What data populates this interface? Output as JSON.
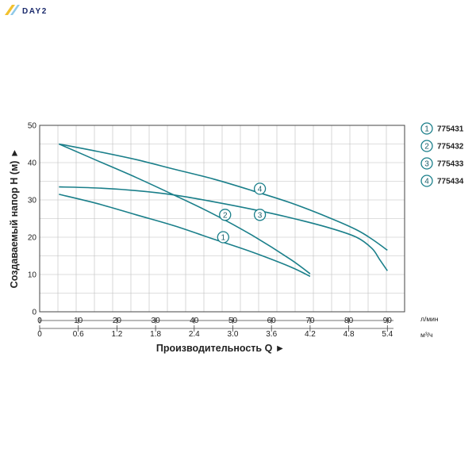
{
  "brand": {
    "logo_text": "DAY2",
    "accent": "#f2c12e",
    "logo_color": "#1a2a6c"
  },
  "colors": {
    "curve": "#1a7f8a",
    "grid": "#bdbdbd",
    "axis": "#444444"
  },
  "chart_data": {
    "type": "line",
    "title": "",
    "xlabel": "Производительность Q ►",
    "ylabel": "Создаваемый напор H (м) ►",
    "xlim": [
      0,
      90
    ],
    "ylim": [
      0,
      50
    ],
    "x_unit": "л/мин",
    "x2_unit": "м³/ч",
    "x_ticks": [
      "0",
      "10",
      "20",
      "30",
      "40",
      "50",
      "60",
      "70",
      "80",
      "90"
    ],
    "x2_ticks": [
      "0",
      "0.6",
      "1.2",
      "1.8",
      "2.4",
      "3.0",
      "3.6",
      "4.2",
      "4.8",
      "5.4"
    ],
    "y_ticks": [
      "0",
      "10",
      "20",
      "30",
      "40",
      "50"
    ],
    "grid": true,
    "legend_position": "right",
    "series": [
      {
        "name": "775431",
        "marker": "1",
        "x": [
          5,
          15,
          25,
          35,
          45,
          55,
          65,
          70
        ],
        "y": [
          31.5,
          29,
          26,
          23,
          19.5,
          16,
          12,
          9.5
        ],
        "label_at": [
          47.5,
          20
        ]
      },
      {
        "name": "775432",
        "marker": "2",
        "x": [
          5,
          15,
          25,
          35,
          45,
          55,
          65,
          70
        ],
        "y": [
          45,
          40.5,
          36,
          31.2,
          26.2,
          20.5,
          14,
          10.2
        ],
        "label_at": [
          48,
          26
        ]
      },
      {
        "name": "775433",
        "marker": "3",
        "x": [
          5,
          15,
          25,
          35,
          45,
          55,
          65,
          75,
          82,
          86,
          88,
          90
        ],
        "y": [
          33.5,
          33.2,
          32.5,
          31.3,
          29.5,
          27.5,
          25.2,
          22.5,
          20,
          17,
          14,
          11
        ],
        "label_at": [
          57,
          26
        ]
      },
      {
        "name": "775434",
        "marker": "4",
        "x": [
          5,
          15,
          25,
          35,
          45,
          55,
          65,
          75,
          82,
          86,
          90
        ],
        "y": [
          45,
          43,
          40.8,
          38.2,
          35.6,
          32.5,
          29.2,
          25.2,
          22,
          19.5,
          16.5
        ],
        "label_at": [
          57,
          33
        ]
      }
    ]
  }
}
